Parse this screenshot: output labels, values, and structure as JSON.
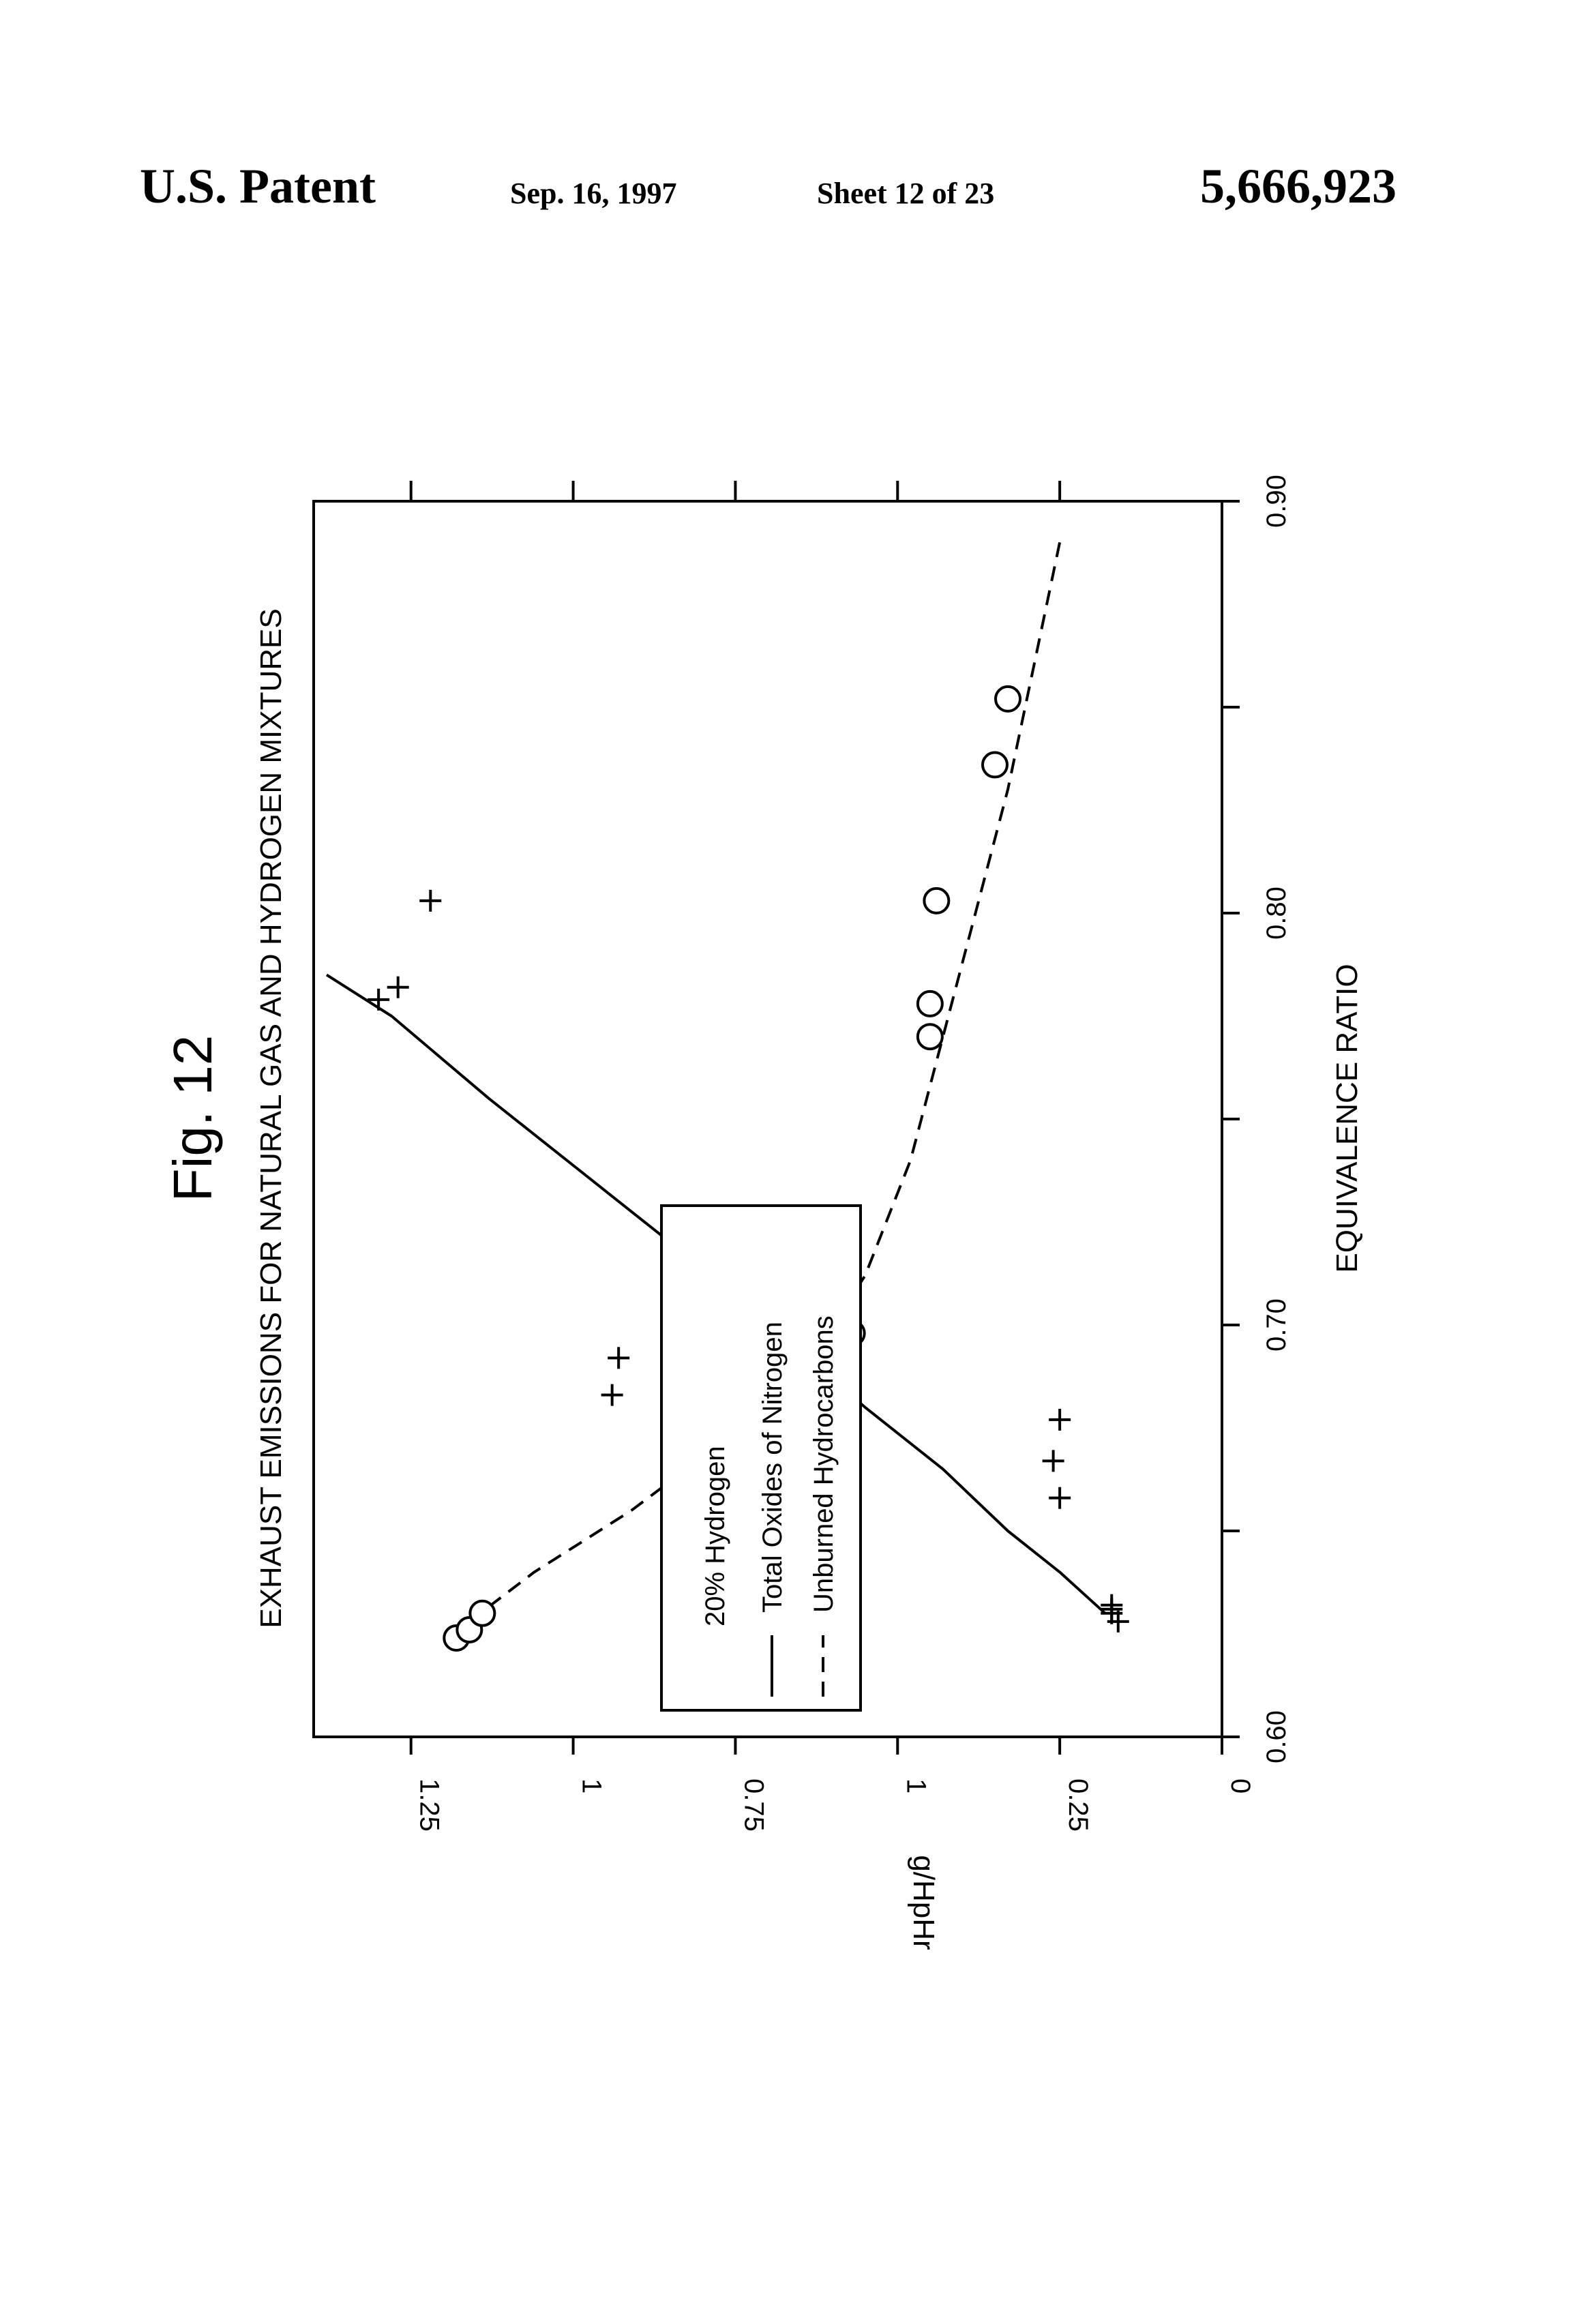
{
  "header": {
    "left": "U.S. Patent",
    "date": "Sep. 16, 1997",
    "sheet": "Sheet 12 of 23",
    "patent_number": "5,666,923"
  },
  "colors": {
    "ink": "#000000",
    "background": "#ffffff"
  },
  "chart_data": {
    "type": "scatter",
    "figure_label": "Fig. 12",
    "title": "EXHAUST EMISSIONS FOR NATURAL GAS AND HYDROGEN MIXTURES",
    "xlabel": "EQUIVALENCE RATIO",
    "ylabel": "g/HpHr",
    "xlim": [
      0.9,
      0.6
    ],
    "ylim": [
      0,
      1.4
    ],
    "x_ticks": [
      0.9,
      0.85,
      0.8,
      0.75,
      0.7,
      0.65,
      0.6
    ],
    "x_tick_labels": [
      "0.90",
      "0.80",
      "0.70",
      "0.60"
    ],
    "y_ticks": [
      0,
      0.25,
      0.5,
      0.75,
      1,
      1.25
    ],
    "y_tick_labels": [
      "0",
      "0.25",
      "1",
      "0.75",
      "1",
      "1.25"
    ],
    "legend_title": "20% Hydrogen",
    "legend_placement": "lower-left",
    "grid": false,
    "series": [
      {
        "name": "Total Oxides of Nitrogen",
        "marker": "plus",
        "line": "solid",
        "points": [
          [
            0.779,
            1.3
          ],
          [
            0.782,
            1.27
          ],
          [
            0.803,
            1.22
          ],
          [
            0.692,
            0.93
          ],
          [
            0.683,
            0.94
          ],
          [
            0.658,
            0.25
          ],
          [
            0.667,
            0.26
          ],
          [
            0.677,
            0.25
          ],
          [
            0.631,
            0.17
          ],
          [
            0.628,
            0.16
          ],
          [
            0.63,
            0.17
          ],
          [
            0.632,
            0.17
          ]
        ],
        "fit": [
          [
            0.785,
            1.38
          ],
          [
            0.775,
            1.28
          ],
          [
            0.755,
            1.13
          ],
          [
            0.735,
            0.97
          ],
          [
            0.715,
            0.81
          ],
          [
            0.695,
            0.66
          ],
          [
            0.68,
            0.55
          ],
          [
            0.665,
            0.43
          ],
          [
            0.65,
            0.33
          ],
          [
            0.64,
            0.25
          ],
          [
            0.63,
            0.18
          ]
        ]
      },
      {
        "name": "Unburned Hydrocarbons",
        "marker": "circle",
        "line": "dashed",
        "points": [
          [
            0.624,
            1.18
          ],
          [
            0.626,
            1.16
          ],
          [
            0.63,
            1.14
          ],
          [
            0.663,
            0.73
          ],
          [
            0.673,
            0.72
          ],
          [
            0.683,
            0.72
          ],
          [
            0.7,
            0.58
          ],
          [
            0.698,
            0.57
          ],
          [
            0.69,
            0.58
          ],
          [
            0.77,
            0.45
          ],
          [
            0.778,
            0.45
          ],
          [
            0.803,
            0.44
          ],
          [
            0.836,
            0.35
          ],
          [
            0.852,
            0.33
          ]
        ],
        "fit": [
          [
            0.628,
            1.16
          ],
          [
            0.64,
            1.06
          ],
          [
            0.655,
            0.91
          ],
          [
            0.668,
            0.8
          ],
          [
            0.68,
            0.7
          ],
          [
            0.695,
            0.62
          ],
          [
            0.712,
            0.55
          ],
          [
            0.74,
            0.48
          ],
          [
            0.77,
            0.43
          ],
          [
            0.8,
            0.38
          ],
          [
            0.83,
            0.33
          ],
          [
            0.86,
            0.29
          ],
          [
            0.89,
            0.25
          ]
        ]
      }
    ]
  }
}
